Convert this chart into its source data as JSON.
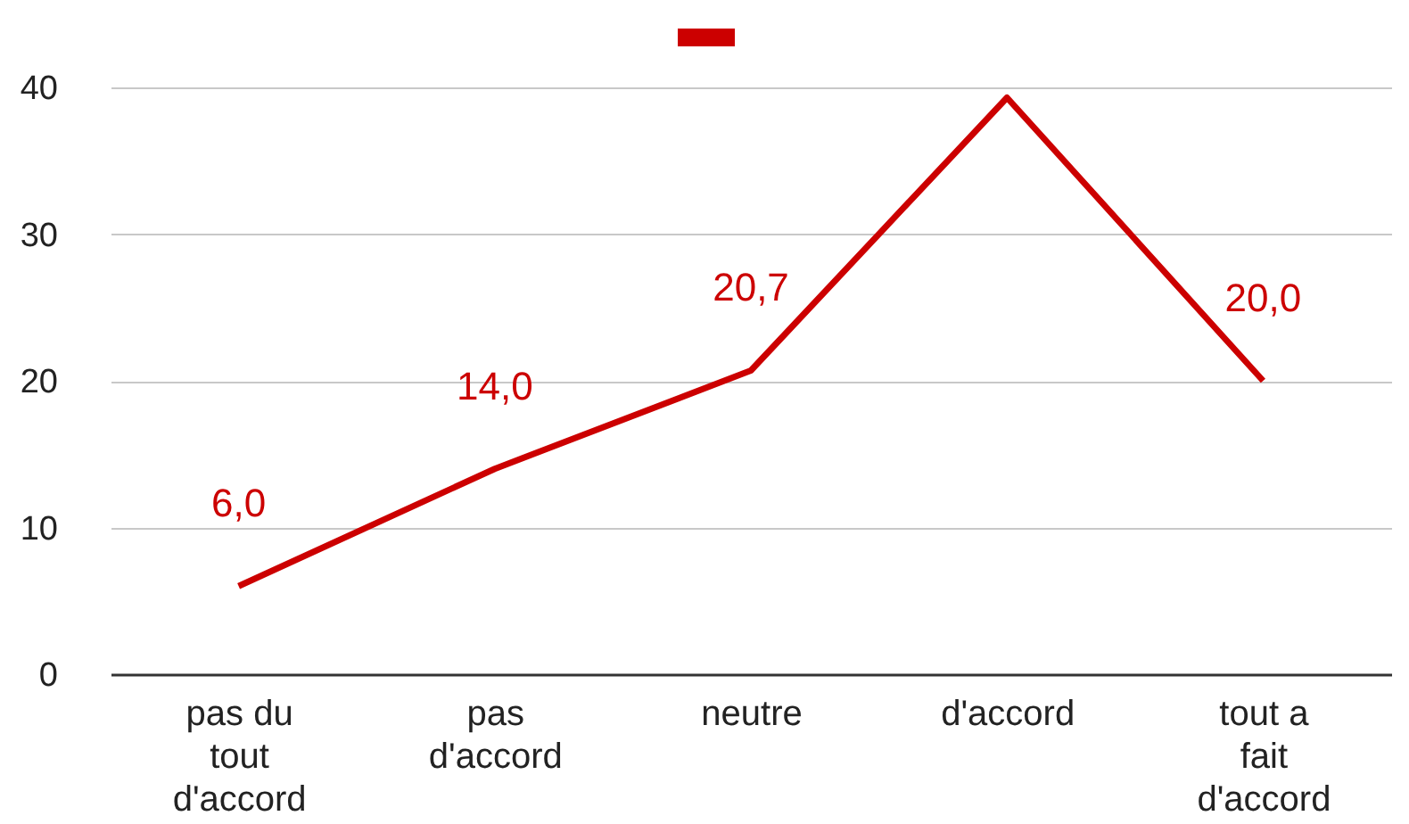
{
  "chart_data": {
    "type": "line",
    "categories": [
      "pas du tout d'accord",
      "pas d'accord",
      "neutre",
      "d'accord",
      "tout a fait d'accord"
    ],
    "series": [
      {
        "color": "#cc0000",
        "values": [
          6.0,
          14.0,
          20.7,
          39.3,
          20.0
        ],
        "value_labels": [
          "6,0",
          "14,0",
          "20,7",
          null,
          "20,0"
        ]
      }
    ],
    "ylim": [
      0,
      40
    ],
    "yticks": [
      0,
      10,
      20,
      30,
      40
    ],
    "grid": "y",
    "marker": "none",
    "line_style": "solid"
  }
}
